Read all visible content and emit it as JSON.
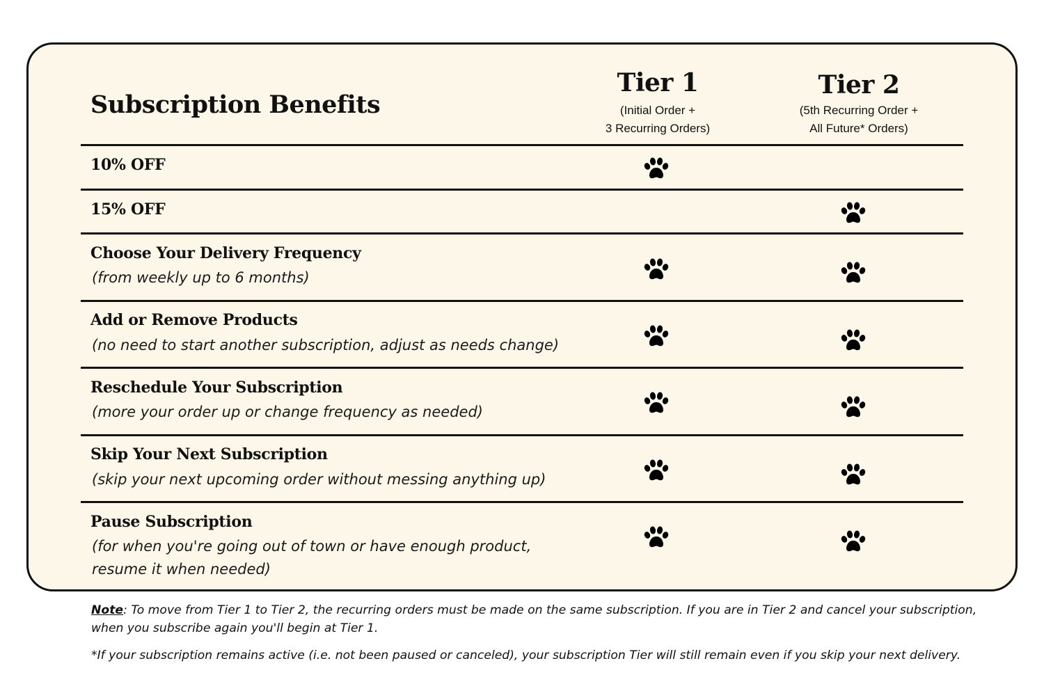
{
  "title": "Subscription Benefits",
  "tiers": [
    {
      "name": "Tier 1",
      "sub_line1": "(Initial Order +",
      "sub_line2": "3 Recurring Orders)"
    },
    {
      "name": "Tier 2",
      "sub_line1": "(5th Recurring Order +",
      "sub_line2": "All Future* Orders)"
    }
  ],
  "benefits": [
    {
      "title": "10% OFF",
      "desc": "",
      "tier1": true,
      "tier2": false
    },
    {
      "title": "15% OFF",
      "desc": "",
      "tier1": false,
      "tier2": true
    },
    {
      "title": "Choose Your Delivery Frequency",
      "desc": "(from weekly up to 6 months)",
      "tier1": true,
      "tier2": true
    },
    {
      "title": "Add or Remove Products",
      "desc": "(no need to start another subscription, adjust as needs change)",
      "tier1": true,
      "tier2": true
    },
    {
      "title": "Reschedule Your Subscription",
      "desc": "(more your order up or change frequency as needed)",
      "tier1": true,
      "tier2": true
    },
    {
      "title": "Skip Your Next Subscription",
      "desc": "(skip your next upcoming order without messing anything up)",
      "tier1": true,
      "tier2": true
    },
    {
      "title": "Pause Subscription",
      "desc": "(for when you're going out of town or have enough product,",
      "desc2": "resume it when needed)",
      "tier1": true,
      "tier2": true
    }
  ],
  "check_icon": "paw-print-icon",
  "notes": {
    "note_label": "Note",
    "note_line1": ": To move from  Tier 1 to Tier 2, the recurring orders must be made on the same subscription. If you are in Tier 2 and cancel your subscription,",
    "note_line2": "when you subscribe again you'll begin at Tier 1.",
    "footnote": "*If your subscription remains active (i.e. not been paused or  canceled), your subscription Tier will still remain even if you skip your next delivery."
  },
  "colors": {
    "card_bg": "#fcf7e8",
    "ink": "#111111"
  }
}
